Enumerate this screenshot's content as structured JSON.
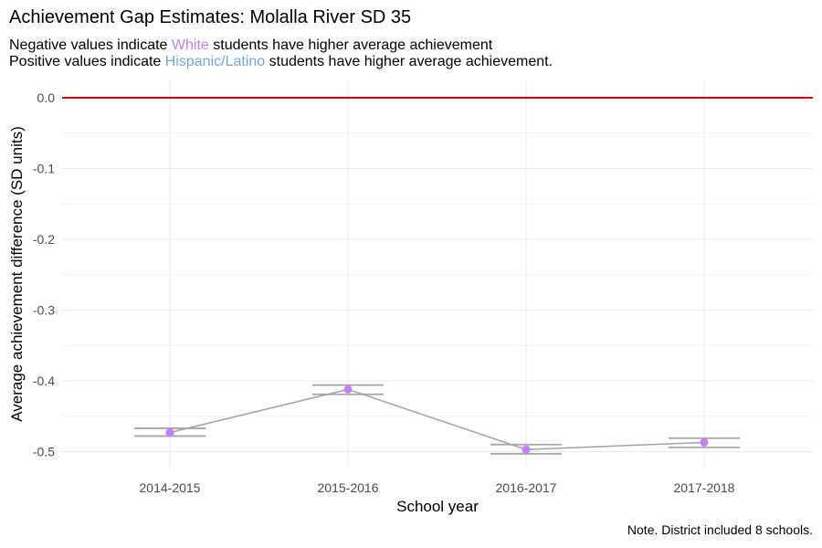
{
  "title": "Achievement Gap Estimates: Molalla River SD 35",
  "subtitle": {
    "line1_prefix": "Negative values indicate ",
    "line1_group": "White",
    "line1_suffix": " students have higher average achievement",
    "line2_prefix": "Positive values indicate ",
    "line2_group": "Hispanic/Latino",
    "line2_suffix": " students have higher average achievement."
  },
  "note": "Note. District included 8 schools.",
  "colors": {
    "point": "#c77cff",
    "line": "#a6a6a6",
    "errorbar": "#a6a6a6",
    "reference": "#e00000",
    "white_label": "#c77cff",
    "hispanic_label": "#6fa8e6"
  },
  "chart_data": {
    "type": "line",
    "xlabel": "School year",
    "ylabel": "Average achievement difference (SD units)",
    "categories": [
      "2014-2015",
      "2015-2016",
      "2016-2017",
      "2017-2018"
    ],
    "values": [
      -0.473,
      -0.412,
      -0.497,
      -0.487
    ],
    "error_bars": [
      {
        "low": -0.478,
        "high": -0.467
      },
      {
        "low": -0.419,
        "high": -0.406
      },
      {
        "low": -0.503,
        "high": -0.49
      },
      {
        "low": -0.494,
        "high": -0.481
      }
    ],
    "y_ticks": [
      0.0,
      -0.1,
      -0.2,
      -0.3,
      -0.4,
      -0.5
    ],
    "y_tick_labels": [
      "0.0",
      "-0.1",
      "-0.2",
      "-0.3",
      "-0.4",
      "-0.5"
    ],
    "ylim": [
      -0.52,
      0.0
    ],
    "reference_line": 0.0,
    "grid": true
  }
}
